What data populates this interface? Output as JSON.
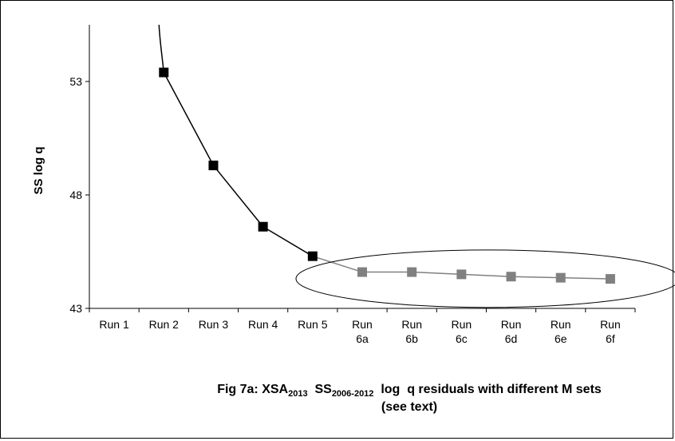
{
  "chart_data": {
    "type": "line",
    "ylabel": "SS log q",
    "ylim": [
      43,
      55.5
    ],
    "yticks": [
      43,
      48,
      53
    ],
    "categories": [
      "Run 1",
      "Run 2",
      "Run 3",
      "Run 4",
      "Run 5",
      "Run 6a",
      "Run 6b",
      "Run 6c",
      "Run 6d",
      "Run 6e",
      "Run 6f"
    ],
    "category_lines": [
      [
        "Run 1"
      ],
      [
        "Run 2"
      ],
      [
        "Run 3"
      ],
      [
        "Run 4"
      ],
      [
        "Run 5"
      ],
      [
        "Run",
        "6a"
      ],
      [
        "Run",
        "6b"
      ],
      [
        "Run",
        "6c"
      ],
      [
        "Run",
        "6d"
      ],
      [
        "Run",
        "6e"
      ],
      [
        "Run",
        "6f"
      ]
    ],
    "series": [
      {
        "values": [
          null,
          53.4,
          49.3,
          46.6,
          45.3,
          44.6,
          44.6,
          44.5,
          44.4,
          44.35,
          44.3
        ],
        "marker_colors": [
          "#000000",
          "#000000",
          "#000000",
          "#000000",
          "#000000",
          "#808080",
          "#808080",
          "#808080",
          "#808080",
          "#808080",
          "#808080"
        ],
        "line_colors": [
          "#000000",
          "#000000",
          "#000000",
          "#000000",
          "#000000",
          "#808080",
          "#808080",
          "#808080",
          "#808080",
          "#808080",
          "#808080"
        ]
      }
    ],
    "annotations": [
      {
        "type": "ellipse",
        "around": [
          "Run 6a",
          "Run 6f"
        ]
      }
    ],
    "caption": {
      "p1": "Fig 7a: XSA",
      "s1": "2013",
      "p2": "  SS",
      "s2": "2006-2012",
      "p3": "  log  q residuals with different M sets",
      "line2": "(see text)"
    },
    "grid": false,
    "legend": "none"
  }
}
